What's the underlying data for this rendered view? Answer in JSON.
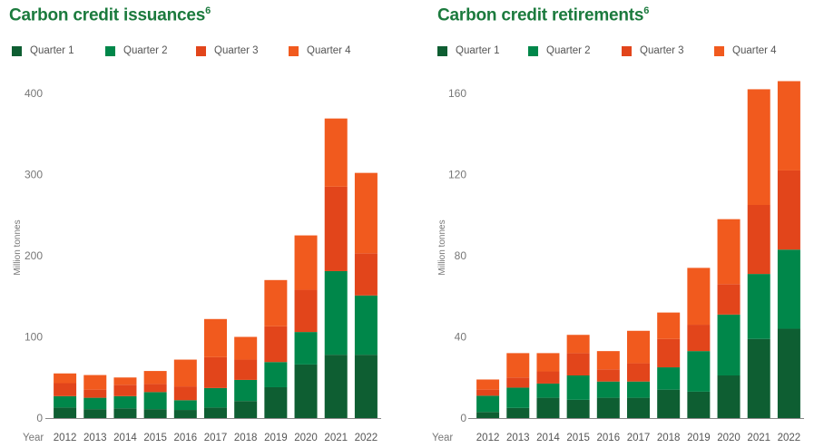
{
  "colors": {
    "quarter_1": "#0e5e32",
    "quarter_2": "#00874a",
    "quarter_3": "#e2451b",
    "quarter_4": "#f15a1e",
    "title": "#1b7a3d",
    "axis_text": "#777777",
    "axis_line": "#888888"
  },
  "chart_data": [
    {
      "type": "bar",
      "stacked": true,
      "title": "Carbon credit issuances",
      "title_footnote": "6",
      "xlabel": "Year",
      "ylabel": "Million tonnes",
      "ylim": [
        0,
        420
      ],
      "yticks": [
        0,
        100,
        200,
        300,
        400
      ],
      "grid": false,
      "legend_position": "top",
      "categories": [
        "2012",
        "2013",
        "2014",
        "2015",
        "2016",
        "2017",
        "2018",
        "2019",
        "2020",
        "2021",
        "2022"
      ],
      "series": [
        {
          "name": "Quarter 1",
          "values": [
            13,
            11,
            12,
            11,
            10,
            13,
            21,
            38,
            66,
            78,
            78
          ]
        },
        {
          "name": "Quarter 2",
          "values": [
            14,
            14,
            15,
            21,
            12,
            24,
            26,
            31,
            40,
            103,
            73
          ]
        },
        {
          "name": "Quarter 3",
          "values": [
            16,
            10,
            14,
            10,
            17,
            38,
            25,
            44,
            52,
            104,
            52
          ]
        },
        {
          "name": "Quarter 4",
          "values": [
            12,
            18,
            9,
            16,
            33,
            47,
            28,
            57,
            67,
            84,
            99
          ]
        }
      ]
    },
    {
      "type": "bar",
      "stacked": true,
      "title": "Carbon credit retirements",
      "title_footnote": "6",
      "xlabel": "Year",
      "ylabel": "Million tonnes",
      "ylim": [
        0,
        168
      ],
      "yticks": [
        0,
        40,
        80,
        120,
        160
      ],
      "grid": false,
      "legend_position": "top",
      "categories": [
        "2012",
        "2013",
        "2014",
        "2015",
        "2016",
        "2017",
        "2018",
        "2019",
        "2020",
        "2021",
        "2022"
      ],
      "series": [
        {
          "name": "Quarter 1",
          "values": [
            3,
            5,
            10,
            9,
            10,
            10,
            14,
            13,
            21,
            39,
            44
          ]
        },
        {
          "name": "Quarter 2",
          "values": [
            8,
            10,
            7,
            12,
            8,
            8,
            11,
            20,
            30,
            32,
            39
          ]
        },
        {
          "name": "Quarter 3",
          "values": [
            3,
            5,
            6,
            11,
            6,
            9,
            14,
            13,
            15,
            34,
            39
          ]
        },
        {
          "name": "Quarter 4",
          "values": [
            5,
            12,
            9,
            9,
            9,
            16,
            13,
            28,
            32,
            57,
            44
          ]
        }
      ]
    }
  ]
}
